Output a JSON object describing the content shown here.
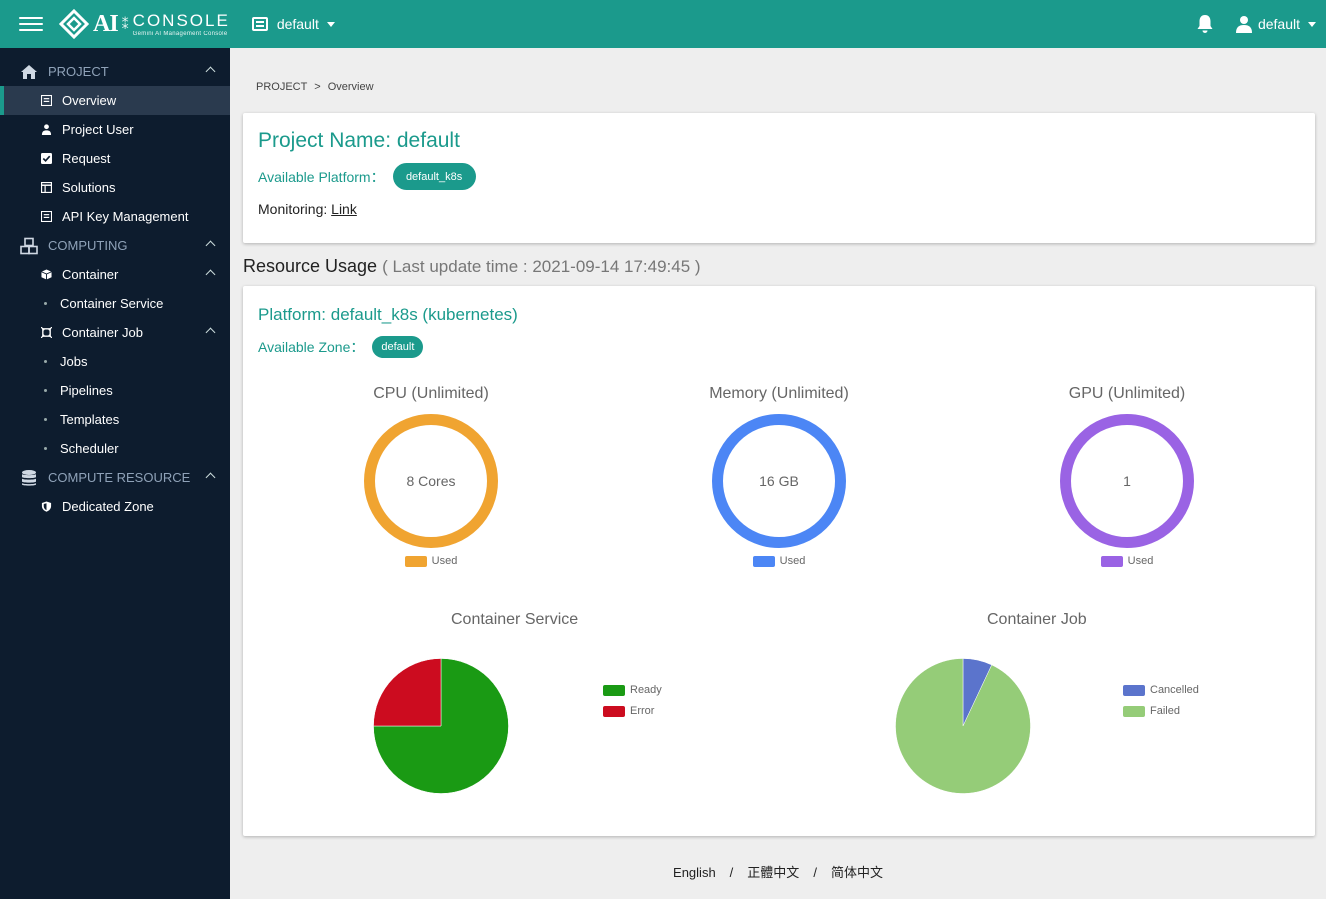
{
  "header": {
    "logo_ai": "AI",
    "logo_console": "CONSOLE",
    "logo_sub": "Gemini AI Management Console",
    "project_select": "default",
    "user_name": "default",
    "menu_icon": "hamburger-menu-icon",
    "bell_icon": "bell-icon",
    "user_icon": "user-icon"
  },
  "sidebar": {
    "project_label": "PROJECT",
    "overview": "Overview",
    "project_user": "Project User",
    "request": "Request",
    "solutions": "Solutions",
    "api_key": "API Key Management",
    "computing_label": "COMPUTING",
    "container": "Container",
    "container_service": "Container Service",
    "container_job": "Container Job",
    "jobs": "Jobs",
    "pipelines": "Pipelines",
    "templates": "Templates",
    "scheduler": "Scheduler",
    "compute_resource_label": "COMPUTE RESOURCE",
    "dedicated_zone": "Dedicated Zone"
  },
  "breadcrumb": {
    "parent": "PROJECT",
    "sep": ">",
    "current": "Overview"
  },
  "project": {
    "title": "Project Name: default",
    "available_platform_label": "Available Platform：",
    "platform_pill": "default_k8s",
    "monitoring_label": "Monitoring: ",
    "monitoring_link": "Link"
  },
  "resource": {
    "title": "Resource Usage",
    "update": "( Last update time : 2021-09-14 17:49:45 )",
    "platform_title": "Platform: default_k8s (kubernetes)",
    "zone_label": "Available Zone：",
    "zone_pill": "default"
  },
  "colors": {
    "accent": "#1b9a8c",
    "cpu": "#f0a431",
    "memory": "#4c86f5",
    "gpu": "#9a63e4",
    "ready": "#1a9a14",
    "error": "#cc0c1f",
    "cancelled": "#5b74cc",
    "failed": "#95cc78"
  },
  "donuts": [
    {
      "title": "CPU (Unlimited)",
      "center": "8 Cores",
      "legend": "Used",
      "used_fraction": 1.0
    },
    {
      "title": "Memory (Unlimited)",
      "center": "16 GB",
      "legend": "Used",
      "used_fraction": 1.0
    },
    {
      "title": "GPU (Unlimited)",
      "center": "1",
      "legend": "Used",
      "used_fraction": 1.0
    }
  ],
  "chart_data": [
    {
      "type": "pie",
      "title": "Container Service",
      "labels": [
        "Ready",
        "Error"
      ],
      "values": [
        75,
        25
      ]
    },
    {
      "type": "pie",
      "title": "Container Job",
      "labels": [
        "Cancelled",
        "Failed"
      ],
      "values": [
        7,
        93
      ]
    }
  ],
  "footer": {
    "english": "English",
    "sep": "/",
    "trad": "正體中文",
    "simp": "简体中文"
  }
}
